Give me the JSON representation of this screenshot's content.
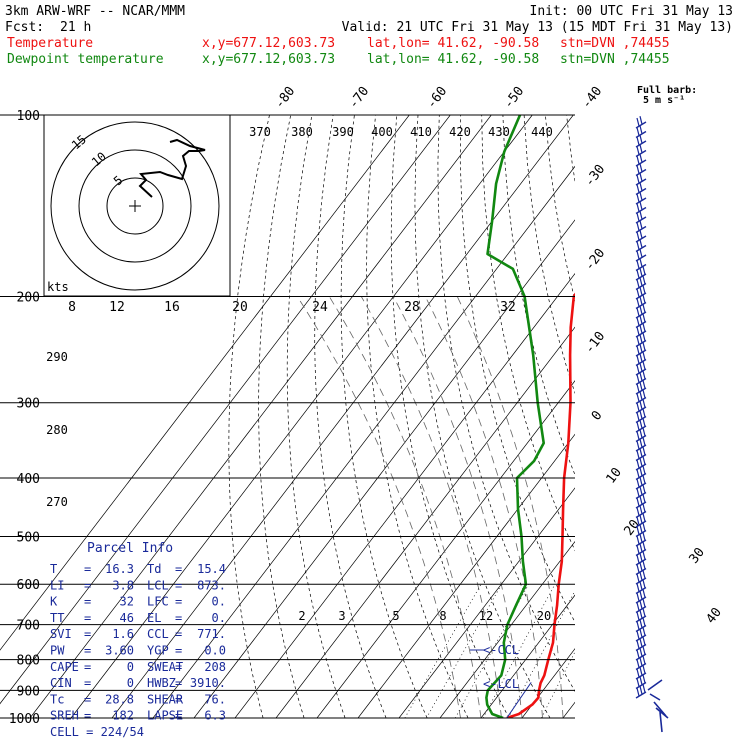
{
  "header": {
    "model": "3km ARW-WRF -- NCAR/MMM",
    "init": "Init: 00 UTC Fri 31 May 13",
    "fcst_label": "Fcst:",
    "fcst_value": "21 h",
    "valid": "Valid: 21 UTC Fri 31 May 13 (15 MDT Fri 31 May 13)",
    "temperature_label": "Temperature",
    "dewpoint_label": "Dewpoint temperature",
    "xy": "x,y=677.12,603.73",
    "latlon": "lat,lon= 41.62, -90.58",
    "stn": "stn=DVN ,74455",
    "full_barb_line1": "Full barb:",
    "full_barb_line2": "5 m s⁻¹",
    "colors": {
      "temperature": "#ee1111",
      "dewpoint": "#118811",
      "parcel": "#1a2a9a"
    }
  },
  "chart_data": {
    "type": "line",
    "title": "",
    "xlabel": "",
    "ylabel": "",
    "pressure_axis_hPa": [
      100,
      200,
      300,
      400,
      500,
      600,
      700,
      800,
      900,
      1000
    ],
    "isotherm_labels_C": [
      -80,
      -70,
      -60,
      -50,
      -40,
      -30,
      -20,
      -10,
      0,
      10,
      20,
      30,
      40
    ],
    "theta_labels_K": [
      370,
      380,
      390,
      400,
      410,
      420,
      430,
      440,
      290,
      280,
      270
    ],
    "mixing_ratio_labels_gkg": [
      "2",
      "3",
      "5",
      "8",
      "12",
      "20"
    ],
    "series": [
      {
        "name": "Temperature",
        "color": "#ee1111",
        "points": [
          [
            1000,
            16.3
          ],
          [
            985,
            18.5
          ],
          [
            950,
            20.0
          ],
          [
            925,
            20.2
          ],
          [
            900,
            19.0
          ],
          [
            875,
            18.0
          ],
          [
            850,
            17.5
          ],
          [
            800,
            15.5
          ],
          [
            750,
            13.5
          ],
          [
            700,
            10.5
          ],
          [
            650,
            7.5
          ],
          [
            600,
            4.0
          ],
          [
            550,
            0.5
          ],
          [
            500,
            -4.0
          ],
          [
            450,
            -9.0
          ],
          [
            400,
            -14.5
          ],
          [
            350,
            -20.0
          ],
          [
            300,
            -27.0
          ],
          [
            250,
            -36.0
          ],
          [
            225,
            -41.0
          ],
          [
            200,
            -46.0
          ],
          [
            180,
            -46.5
          ],
          [
            170,
            -42.0
          ],
          [
            160,
            -44.0
          ],
          [
            140,
            -47.0
          ],
          [
            120,
            -53.0
          ],
          [
            100,
            -59.0
          ]
        ]
      },
      {
        "name": "Dewpoint temperature",
        "color": "#118811",
        "points": [
          [
            1000,
            15.4
          ],
          [
            985,
            12.0
          ],
          [
            950,
            9.0
          ],
          [
            925,
            7.5
          ],
          [
            900,
            6.5
          ],
          [
            850,
            7.0
          ],
          [
            800,
            5.0
          ],
          [
            750,
            1.5
          ],
          [
            700,
            -1.0
          ],
          [
            650,
            -2.5
          ],
          [
            600,
            -4.0
          ],
          [
            550,
            -9.0
          ],
          [
            500,
            -14.0
          ],
          [
            450,
            -20.0
          ],
          [
            400,
            -26.0
          ],
          [
            375,
            -25.0
          ],
          [
            350,
            -26.0
          ],
          [
            300,
            -35.0
          ],
          [
            250,
            -45.0
          ],
          [
            200,
            -58.0
          ],
          [
            180,
            -66.0
          ],
          [
            170,
            -75.0
          ],
          [
            150,
            -80.0
          ],
          [
            130,
            -86.0
          ],
          [
            115,
            -90.0
          ],
          [
            100,
            -93.0
          ]
        ]
      }
    ],
    "hodograph": {
      "ring_labels_kts": [
        "5",
        "10",
        "15"
      ],
      "units": "kts",
      "speed_ticks": [
        "8",
        "12",
        "16",
        "20",
        "24",
        "28",
        "32"
      ]
    },
    "annotations": {
      "ccl": "<-CCL",
      "lcl": "<-LCL"
    }
  },
  "parcel_info": {
    "title": "Parcel Info",
    "rows": [
      {
        "l1": "T",
        "v1": "16.3",
        "l2": "Td",
        "v2": "15.4"
      },
      {
        "l1": "LI",
        "v1": "3.8",
        "l2": "LCL",
        "v2": "873."
      },
      {
        "l1": "K",
        "v1": "32",
        "l2": "LFC",
        "v2": "0."
      },
      {
        "l1": "TT",
        "v1": "46",
        "l2": "EL",
        "v2": "0."
      },
      {
        "l1": "SVI",
        "v1": "1.6",
        "l2": "CCL",
        "v2": "771."
      },
      {
        "l1": "PW",
        "v1": "3.60",
        "l2": "YGP",
        "v2": "0.0"
      },
      {
        "l1": "CAPE",
        "v1": "0",
        "l2": "SWEAT",
        "v2": "208"
      },
      {
        "l1": "CIN",
        "v1": "0",
        "l2": "HWBZ",
        "v2": "3910."
      },
      {
        "l1": "Tc",
        "v1": "28.8",
        "l2": "SHEAR",
        "v2": "76."
      },
      {
        "l1": "SREH",
        "v1": "182",
        "l2": "LAPSE",
        "v2": "6.3"
      }
    ],
    "cell": "CELL = 224/54"
  }
}
